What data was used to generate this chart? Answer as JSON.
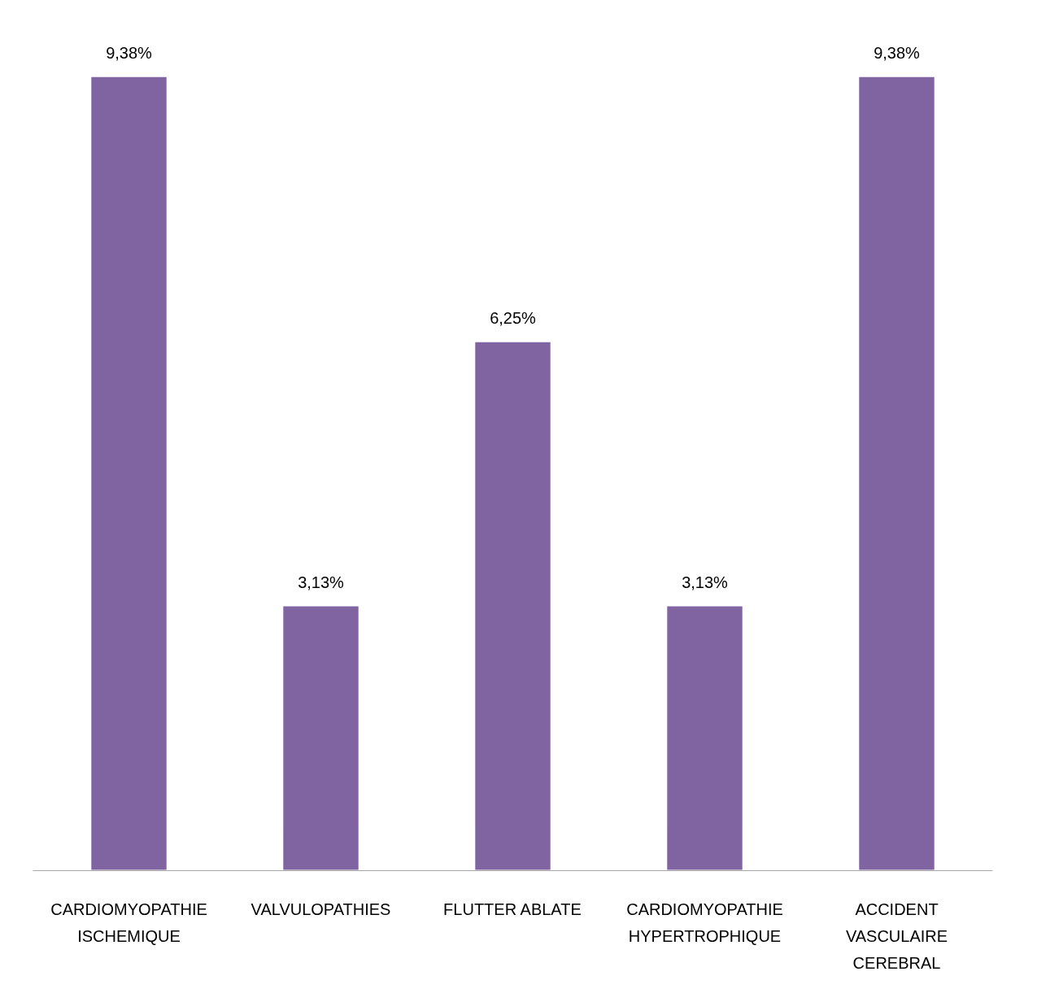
{
  "chart_data": {
    "type": "bar",
    "categories": [
      "CARDIOMYOPATHIE\nISCHEMIQUE",
      "VALVULOPATHIES",
      "FLUTTER ABLATE",
      "CARDIOMYOPATHIE\nHYPERTROPHIQUE",
      "ACCIDENT\nVASCULAIRE\nCEREBRAL"
    ],
    "values": [
      9.38,
      3.13,
      6.25,
      3.13,
      9.38
    ],
    "value_labels": [
      "9,38%",
      "3,13%",
      "6,25%",
      "3,13%",
      "9,38%"
    ],
    "color": "#8064a2",
    "grid": false
  }
}
